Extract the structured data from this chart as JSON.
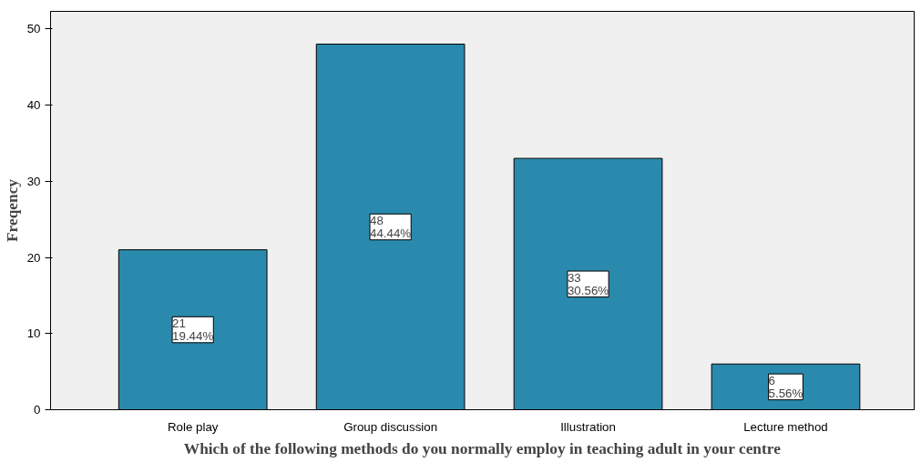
{
  "chart_data": {
    "type": "bar",
    "xlabel": "Which of the following methods do you normally employ in teaching adult in your centre",
    "ylabel": "Freqency",
    "categories": [
      "Role play",
      "Group discussion",
      "Illustration",
      "Lecture method"
    ],
    "values": [
      21,
      48,
      33,
      6
    ],
    "value_labels": [
      "21\n19.44%",
      "48\n44.44%",
      "33\n30.56%",
      "6\n5.56%"
    ],
    "color": "#2a8aad",
    "ylim": [
      0,
      52.3
    ],
    "yticks": [
      0,
      10,
      20,
      30,
      40,
      50
    ],
    "grid": false
  }
}
